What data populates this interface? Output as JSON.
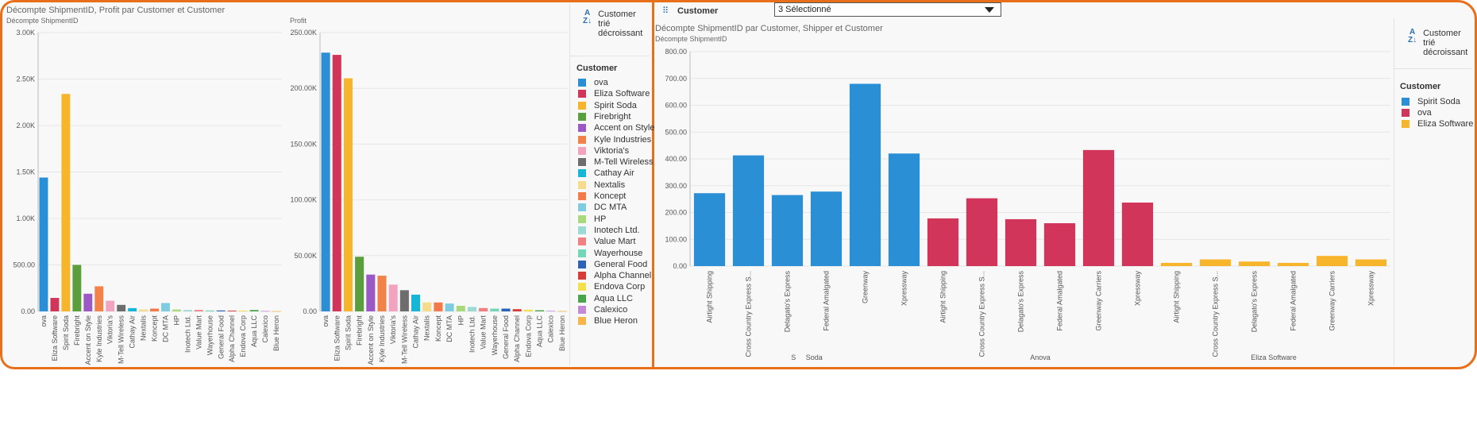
{
  "left_panel": {
    "chart1_title": "Décompte ShipmentID, Profit par Customer et Customer",
    "chart1_ylabel": "Décompte ShipmentID",
    "chart2_ylabel": "Profit",
    "sort_label": "Customer trié décroissant",
    "legend_title": "Customer",
    "legend": [
      {
        "name": "ova",
        "color": "#2b8fd6"
      },
      {
        "name": "Eliza Software",
        "color": "#d1365a"
      },
      {
        "name": "Spirit Soda",
        "color": "#f7b52c"
      },
      {
        "name": "Firebright",
        "color": "#5a9e3e"
      },
      {
        "name": "Accent on Style",
        "color": "#9b59c6"
      },
      {
        "name": "Kyle Industries",
        "color": "#f0824a"
      },
      {
        "name": "Viktoria's",
        "color": "#f2a3c0"
      },
      {
        "name": "M-Tell Wireless",
        "color": "#6d6d6d"
      },
      {
        "name": "Cathay Air",
        "color": "#15b6d6"
      },
      {
        "name": "Nextalis",
        "color": "#f5dc8a"
      },
      {
        "name": "Koncept",
        "color": "#f47a4a"
      },
      {
        "name": "DC MTA",
        "color": "#7fcbe0"
      },
      {
        "name": "HP",
        "color": "#a8d97a"
      },
      {
        "name": "Inotech Ltd.",
        "color": "#9ddad3"
      },
      {
        "name": "Value Mart",
        "color": "#f28080"
      },
      {
        "name": "Wayerhouse",
        "color": "#73d6b8"
      },
      {
        "name": "General Food",
        "color": "#2b63b8"
      },
      {
        "name": "Alpha Channel",
        "color": "#d93a3a"
      },
      {
        "name": "Endova Corp",
        "color": "#f2e14a"
      },
      {
        "name": "Aqua LLC",
        "color": "#4aa54a"
      },
      {
        "name": "Calexico",
        "color": "#c58ad6"
      },
      {
        "name": "Blue Heron",
        "color": "#f7b54a"
      }
    ]
  },
  "right_panel": {
    "filter_label": "Customer",
    "filter_value": "3 Sélectionné",
    "chart_title": "Décompte ShipmentID par Customer, Shipper et Customer",
    "chart_ylabel": "Décompte ShipmentID",
    "sort_label": "Customer trié décroissant",
    "legend_title": "Customer",
    "legend": [
      {
        "name": "Spirit Soda",
        "color": "#2b8fd6"
      },
      {
        "name": "ova",
        "color": "#d1365a"
      },
      {
        "name": "Eliza Software",
        "color": "#f7b52c"
      }
    ]
  },
  "chart_data": [
    {
      "type": "bar",
      "ylabel": "Décompte ShipmentID",
      "ylim": [
        0,
        3000
      ],
      "yticks": [
        "0.00",
        "500.00",
        "1.00K",
        "1.50K",
        "2.00K",
        "2.50K",
        "3.00K"
      ],
      "categories": [
        "ova",
        "Eliza Software",
        "Spirit Soda",
        "Firebright",
        "Accent on Style",
        "Kyle Industries",
        "Viktoria's",
        "M-Tell Wireless",
        "Cathay Air",
        "Nextalis",
        "Koncept",
        "DC MTA",
        "HP",
        "Inotech Ltd.",
        "Value Mart",
        "Wayerhouse",
        "General Food",
        "Alpha Channel",
        "Endova Corp",
        "Aqua LLC",
        "Calexico",
        "Blue Heron"
      ],
      "values": [
        1440,
        145,
        2340,
        500,
        190,
        270,
        115,
        70,
        35,
        20,
        30,
        90,
        20,
        15,
        15,
        10,
        10,
        8,
        8,
        15,
        5,
        3
      ],
      "colors": [
        "#2b8fd6",
        "#d1365a",
        "#f7b52c",
        "#5a9e3e",
        "#9b59c6",
        "#f0824a",
        "#f2a3c0",
        "#6d6d6d",
        "#15b6d6",
        "#f5dc8a",
        "#f47a4a",
        "#7fcbe0",
        "#a8d97a",
        "#9ddad3",
        "#f28080",
        "#73d6b8",
        "#2b63b8",
        "#d93a3a",
        "#f2e14a",
        "#4aa54a",
        "#c58ad6",
        "#f7b54a"
      ]
    },
    {
      "type": "bar",
      "ylabel": "Profit",
      "ylim": [
        0,
        250000
      ],
      "yticks": [
        "0.00",
        "50.00K",
        "100.00K",
        "150.00K",
        "200.00K",
        "250.00K"
      ],
      "categories": [
        "ova",
        "Eliza Software",
        "Spirit Soda",
        "Firebright",
        "Accent on Style",
        "Kyle Industries",
        "Viktoria's",
        "M-Tell Wireless",
        "Cathay Air",
        "Nextalis",
        "Koncept",
        "DC MTA",
        "HP",
        "Inotech Ltd.",
        "Value Mart",
        "Wayerhouse",
        "General Food",
        "Alpha Channel",
        "Endova Corp",
        "Aqua LLC",
        "Calexico",
        "Blue Heron"
      ],
      "values": [
        232000,
        230000,
        209000,
        49000,
        33000,
        32000,
        24000,
        19000,
        15000,
        8000,
        8000,
        7000,
        5000,
        4000,
        3000,
        2500,
        2500,
        2000,
        1500,
        1000,
        500,
        300
      ],
      "colors": [
        "#2b8fd6",
        "#d1365a",
        "#f7b52c",
        "#5a9e3e",
        "#9b59c6",
        "#f0824a",
        "#f2a3c0",
        "#6d6d6d",
        "#15b6d6",
        "#f5dc8a",
        "#f47a4a",
        "#7fcbe0",
        "#a8d97a",
        "#9ddad3",
        "#f28080",
        "#73d6b8",
        "#2b63b8",
        "#d93a3a",
        "#f2e14a",
        "#4aa54a",
        "#c58ad6",
        "#f7b54a"
      ]
    },
    {
      "type": "bar",
      "title": "Décompte ShipmentID par Customer, Shipper et Customer",
      "ylabel": "Décompte ShipmentID",
      "ylim": [
        0,
        800
      ],
      "yticks": [
        "0.00",
        "100.00",
        "200.00",
        "300.00",
        "400.00",
        "500.00",
        "600.00",
        "700.00",
        "800.00"
      ],
      "groups": [
        {
          "label": "S     Soda",
          "color": "#2b8fd6",
          "categories": [
            "Airtight Shipping",
            "Cross Country Express S...",
            "Delagato's Express",
            "Federal Amalgated",
            "Greenway",
            "Xpressway"
          ],
          "values": [
            272,
            413,
            265,
            278,
            680,
            420
          ]
        },
        {
          "label": "Anova",
          "color": "#d1365a",
          "categories": [
            "Airtight Shipping",
            "Cross Country Express S...",
            "Delagato's Express",
            "Federal Amalgated",
            "Greenway Carriers",
            "Xpressway"
          ],
          "values": [
            178,
            253,
            175,
            160,
            433,
            237
          ]
        },
        {
          "label": "Eliza Software",
          "color": "#f7b52c",
          "categories": [
            "Airtight Shipping",
            "Cross Country Express S...",
            "Delagato's Express",
            "Federal Amalgated",
            "Greenway Carriers",
            "Xpressway"
          ],
          "values": [
            12,
            25,
            17,
            12,
            38,
            25
          ]
        }
      ]
    }
  ]
}
